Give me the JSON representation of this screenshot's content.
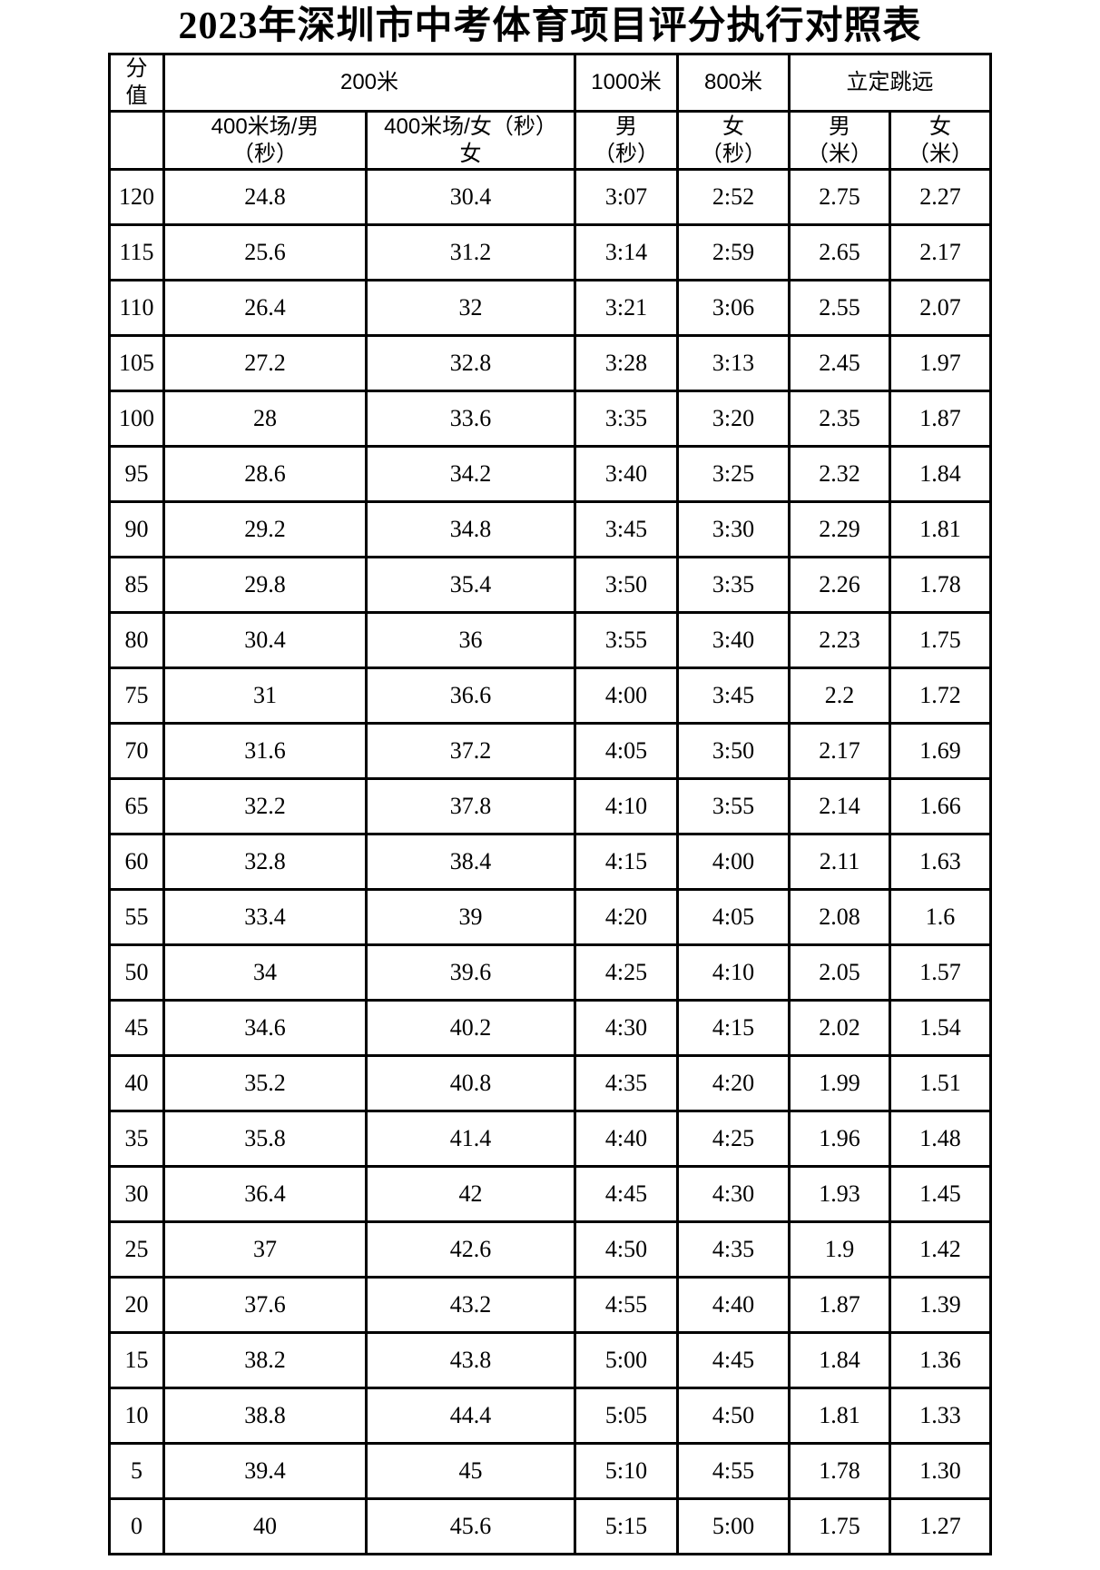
{
  "title": "2023年深圳市中考体育项目评分执行对照表",
  "table": {
    "header_row1": {
      "score": "分\n值",
      "m200": "200米",
      "m1000": "1000米",
      "m800": "800米",
      "jump": "立定跳远"
    },
    "header_row2": {
      "blank": "",
      "m200_male": "400米场/男\n（秒）",
      "m200_female": "400米场/女（秒）\n女",
      "m1000_male": "男\n（秒）",
      "m800_female": "女\n（秒）",
      "jump_male": "男\n（米）",
      "jump_female": "女\n（米）"
    },
    "rows": [
      [
        "120",
        "24.8",
        "30.4",
        "3:07",
        "2:52",
        "2.75",
        "2.27"
      ],
      [
        "115",
        "25.6",
        "31.2",
        "3:14",
        "2:59",
        "2.65",
        "2.17"
      ],
      [
        "110",
        "26.4",
        "32",
        "3:21",
        "3:06",
        "2.55",
        "2.07"
      ],
      [
        "105",
        "27.2",
        "32.8",
        "3:28",
        "3:13",
        "2.45",
        "1.97"
      ],
      [
        "100",
        "28",
        "33.6",
        "3:35",
        "3:20",
        "2.35",
        "1.87"
      ],
      [
        "95",
        "28.6",
        "34.2",
        "3:40",
        "3:25",
        "2.32",
        "1.84"
      ],
      [
        "90",
        "29.2",
        "34.8",
        "3:45",
        "3:30",
        "2.29",
        "1.81"
      ],
      [
        "85",
        "29.8",
        "35.4",
        "3:50",
        "3:35",
        "2.26",
        "1.78"
      ],
      [
        "80",
        "30.4",
        "36",
        "3:55",
        "3:40",
        "2.23",
        "1.75"
      ],
      [
        "75",
        "31",
        "36.6",
        "4:00",
        "3:45",
        "2.2",
        "1.72"
      ],
      [
        "70",
        "31.6",
        "37.2",
        "4:05",
        "3:50",
        "2.17",
        "1.69"
      ],
      [
        "65",
        "32.2",
        "37.8",
        "4:10",
        "3:55",
        "2.14",
        "1.66"
      ],
      [
        "60",
        "32.8",
        "38.4",
        "4:15",
        "4:00",
        "2.11",
        "1.63"
      ],
      [
        "55",
        "33.4",
        "39",
        "4:20",
        "4:05",
        "2.08",
        "1.6"
      ],
      [
        "50",
        "34",
        "39.6",
        "4:25",
        "4:10",
        "2.05",
        "1.57"
      ],
      [
        "45",
        "34.6",
        "40.2",
        "4:30",
        "4:15",
        "2.02",
        "1.54"
      ],
      [
        "40",
        "35.2",
        "40.8",
        "4:35",
        "4:20",
        "1.99",
        "1.51"
      ],
      [
        "35",
        "35.8",
        "41.4",
        "4:40",
        "4:25",
        "1.96",
        "1.48"
      ],
      [
        "30",
        "36.4",
        "42",
        "4:45",
        "4:30",
        "1.93",
        "1.45"
      ],
      [
        "25",
        "37",
        "42.6",
        "4:50",
        "4:35",
        "1.9",
        "1.42"
      ],
      [
        "20",
        "37.6",
        "43.2",
        "4:55",
        "4:40",
        "1.87",
        "1.39"
      ],
      [
        "15",
        "38.2",
        "43.8",
        "5:00",
        "4:45",
        "1.84",
        "1.36"
      ],
      [
        "10",
        "38.8",
        "44.4",
        "5:05",
        "4:50",
        "1.81",
        "1.33"
      ],
      [
        "5",
        "39.4",
        "45",
        "5:10",
        "4:55",
        "1.78",
        "1.30"
      ],
      [
        "0",
        "40",
        "45.6",
        "5:15",
        "5:00",
        "1.75",
        "1.27"
      ]
    ]
  }
}
